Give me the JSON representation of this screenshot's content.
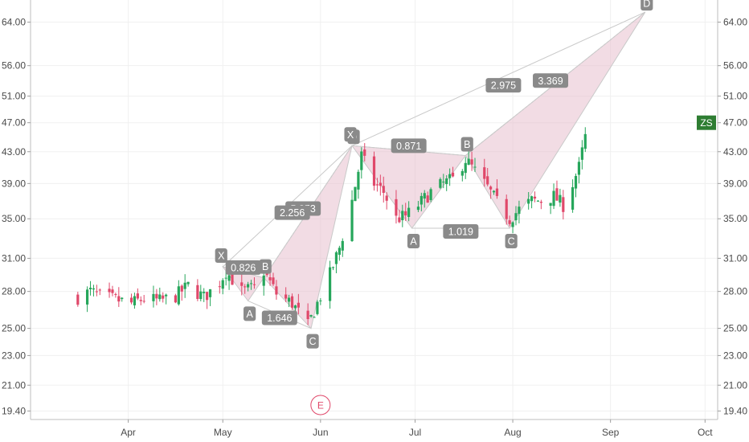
{
  "chart_data": {
    "type": "candlestick",
    "symbol": "ZS",
    "last_price_tag": "ZS",
    "y_scale": "log",
    "ylim": [
      18.9,
      68.5
    ],
    "y_ticks": [
      19.4,
      21.0,
      23.0,
      25.0,
      28.0,
      31.0,
      35.0,
      39.0,
      43.0,
      47.0,
      51.0,
      56.0,
      64.0
    ],
    "y_tick_labels": [
      "19.40",
      "21.00",
      "23.00",
      "25.00",
      "28.00",
      "31.00",
      "35.00",
      "39.00",
      "43.00",
      "47.00",
      "51.00",
      "56.00",
      "64.00"
    ],
    "x_axis": {
      "start": "2018-03-01",
      "end": "2018-10-05",
      "month_ticks": [
        {
          "date": "2018-04-01",
          "label": "Apr"
        },
        {
          "date": "2018-05-01",
          "label": "May"
        },
        {
          "date": "2018-06-01",
          "label": "Jun"
        },
        {
          "date": "2018-07-01",
          "label": "Jul"
        },
        {
          "date": "2018-08-01",
          "label": "Aug"
        },
        {
          "date": "2018-09-01",
          "label": "Sep"
        },
        {
          "date": "2018-10-01",
          "label": "Oct"
        }
      ]
    },
    "grid": true,
    "colors": {
      "up": "#26a65b",
      "down": "#e0486a",
      "pattern_fill": "#e8bfcd",
      "pattern_stroke": "#c9c9c9",
      "label_bg": "#8a8a8a",
      "tag_bg": "#2e7d32",
      "earnings": "#e0486a"
    },
    "close_path": [
      [
        "2018-03-16",
        27.5
      ],
      [
        "2018-03-20",
        28.0
      ],
      [
        "2018-03-23",
        27.6
      ],
      [
        "2018-03-28",
        27.3
      ],
      [
        "2018-04-02",
        27.0
      ],
      [
        "2018-04-06",
        27.4
      ],
      [
        "2018-04-11",
        27.2
      ],
      [
        "2018-04-16",
        27.6
      ],
      [
        "2018-04-20",
        28.5
      ],
      [
        "2018-04-25",
        27.5
      ],
      [
        "2018-04-30",
        28.8
      ],
      [
        "2018-05-02",
        29.8
      ],
      [
        "2018-05-07",
        28.0
      ],
      [
        "2018-05-11",
        28.3
      ],
      [
        "2018-05-14",
        29.8
      ],
      [
        "2018-05-18",
        27.8
      ],
      [
        "2018-05-23",
        27.0
      ],
      [
        "2018-05-28",
        25.2
      ],
      [
        "2018-05-31",
        27.0
      ],
      [
        "2018-06-04",
        29.5
      ],
      [
        "2018-06-07",
        32.0
      ],
      [
        "2018-06-11",
        37.0
      ],
      [
        "2018-06-14",
        42.5
      ],
      [
        "2018-06-18",
        39.0
      ],
      [
        "2018-06-21",
        38.0
      ],
      [
        "2018-06-25",
        35.0
      ],
      [
        "2018-06-28",
        35.3
      ],
      [
        "2018-07-02",
        36.5
      ],
      [
        "2018-07-06",
        38.0
      ],
      [
        "2018-07-10",
        39.0
      ],
      [
        "2018-07-13",
        39.5
      ],
      [
        "2018-07-17",
        42.0
      ],
      [
        "2018-07-20",
        40.5
      ],
      [
        "2018-07-24",
        38.5
      ],
      [
        "2018-07-27",
        36.8
      ],
      [
        "2018-07-31",
        35.0
      ],
      [
        "2018-08-03",
        36.0
      ],
      [
        "2018-08-07",
        37.0
      ],
      [
        "2018-08-10",
        37.0
      ],
      [
        "2018-08-14",
        37.5
      ],
      [
        "2018-08-17",
        36.5
      ],
      [
        "2018-08-20",
        39.0
      ],
      [
        "2018-08-22",
        41.0
      ],
      [
        "2018-08-24",
        45.0
      ],
      [
        "2018-08-25",
        47.0
      ]
    ],
    "patterns": [
      {
        "name": "small",
        "points": {
          "X": [
            "2018-05-01",
            30.2
          ],
          "A": [
            "2018-05-09",
            27.2
          ],
          "B": [
            "2018-05-14",
            29.2
          ],
          "C": [
            "2018-05-29",
            25.0
          ],
          "D": [
            "2018-06-11",
            43.8
          ]
        },
        "ratios": {
          "XB": "0.826",
          "AC": "1.646",
          "BD": "5.253",
          "XD": "2.256"
        }
      },
      {
        "name": "large",
        "points": {
          "X": [
            "2018-06-11",
            43.8
          ],
          "A": [
            "2018-06-30",
            34.0
          ],
          "B": [
            "2018-07-17",
            42.5
          ],
          "C": [
            "2018-07-31",
            34.0
          ],
          "D": [
            "2018-09-12",
            66.0
          ]
        },
        "ratios": {
          "XB": "0.871",
          "AC": "1.019",
          "BD": "3.369",
          "XD": "2.975"
        }
      }
    ],
    "point_labels": {
      "X": "X",
      "A": "A",
      "B": "B",
      "C": "C",
      "D": "D"
    },
    "earnings_marker": {
      "date": "2018-06-01",
      "label": "E"
    }
  }
}
